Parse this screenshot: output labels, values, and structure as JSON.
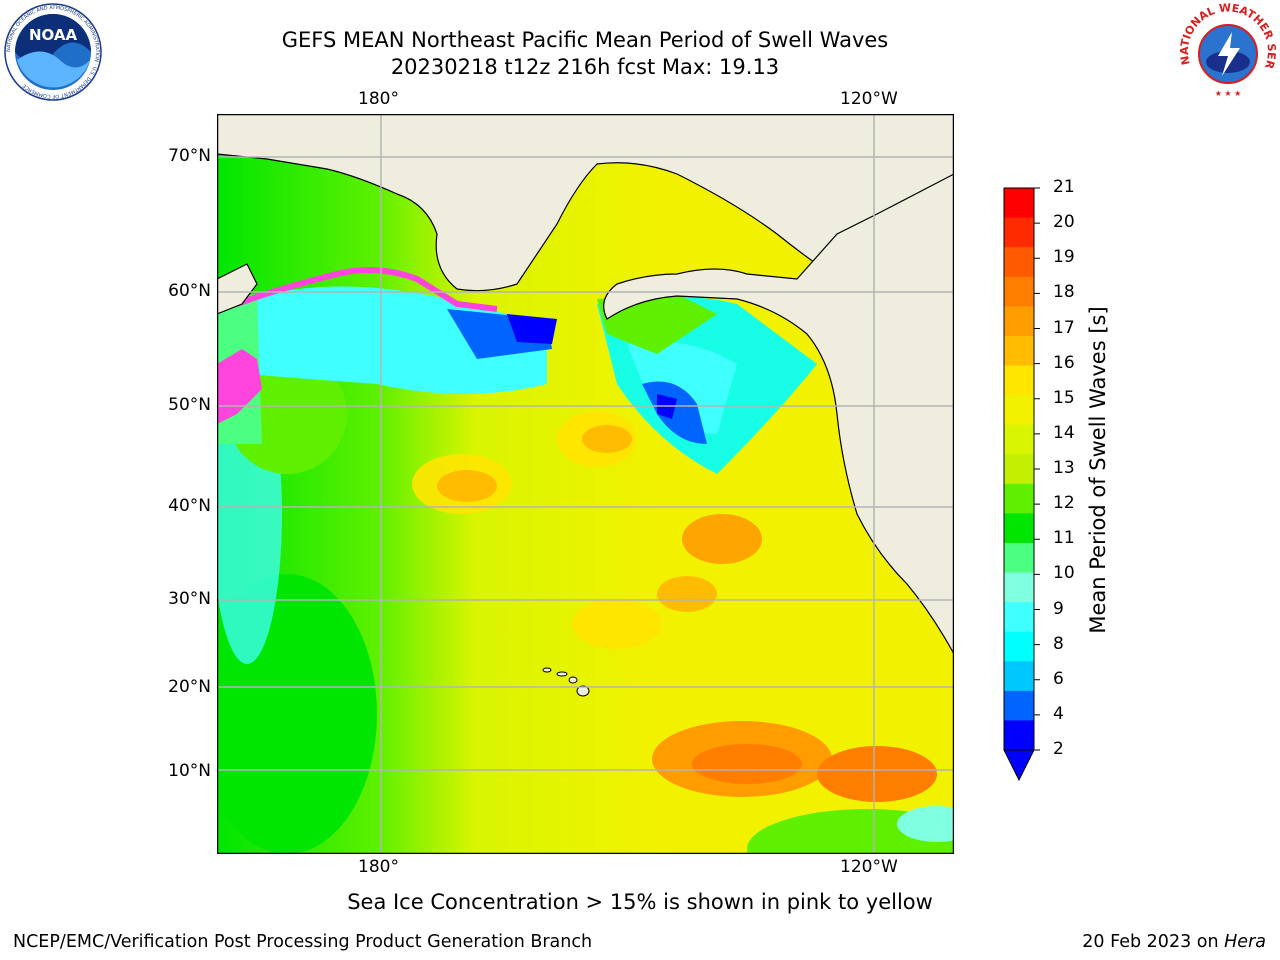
{
  "title": {
    "line1": "GEFS MEAN Northeast Pacific Mean Period of Swell Waves",
    "line2": "20230218 t12z 216h fcst   Max: 19.13"
  },
  "logos": {
    "left": {
      "text": "NOAA",
      "ring_text": "NATIONAL OCEANIC AND ATMOSPHERIC ADMINISTRATION · U.S. DEPARTMENT OF COMMERCE"
    },
    "right": {
      "ring_text": "NATIONAL WEATHER SERVICE"
    }
  },
  "map": {
    "lon_labels_top": [
      "180°",
      "120°W"
    ],
    "lon_labels_bottom": [
      "180°",
      "120°W"
    ],
    "lat_labels": [
      "70°N",
      "60°N",
      "50°N",
      "40°N",
      "30°N",
      "20°N",
      "10°N"
    ],
    "colors": {
      "land": "#efedde",
      "coast": "#000000",
      "grid": "#b4b4b4",
      "ice": "#ff44dd"
    }
  },
  "colorbar": {
    "label": "Mean Period of Swell Waves [s]",
    "ticks": [
      "21",
      "20",
      "19",
      "18",
      "17",
      "16",
      "15",
      "14",
      "13",
      "12",
      "11",
      "10",
      "9",
      "8",
      "6",
      "4",
      "2"
    ],
    "colors": [
      "#ff0000",
      "#ff2a00",
      "#ff5a00",
      "#ff7e00",
      "#ff9c00",
      "#ffbc00",
      "#ffe600",
      "#f2f200",
      "#d9f500",
      "#c2f000",
      "#5ff000",
      "#00e600",
      "#4dff80",
      "#80ffe0",
      "#40ffff",
      "#00ffff",
      "#00c8ff",
      "#0064ff",
      "#0000ff"
    ],
    "extend_color": "#0000ff"
  },
  "note": "Sea Ice Concentration > 15% is shown in pink to yellow",
  "credits": {
    "left": "NCEP/EMC/Verification Post Processing Product Generation Branch",
    "right_prefix": "20 Feb 2023 on ",
    "right_host": "Hera"
  }
}
